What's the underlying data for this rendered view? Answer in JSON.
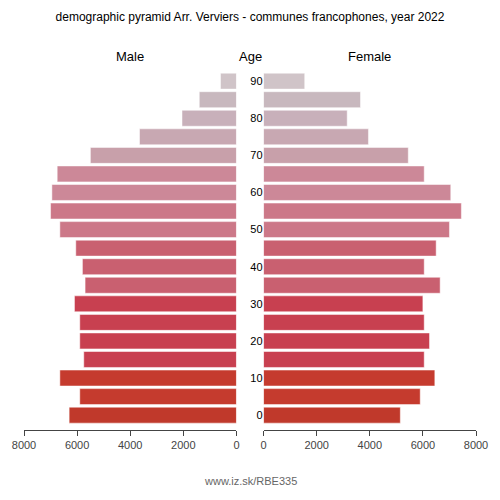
{
  "chart_data": {
    "type": "bar",
    "orientation": "horizontal",
    "title": "demographic pyramid Arr. Verviers - communes francophones, year 2022",
    "ylabel": "Age",
    "annotations": [
      "www.iz.sk/RBE335"
    ],
    "y": [
      0,
      5,
      10,
      15,
      20,
      25,
      30,
      35,
      40,
      45,
      50,
      55,
      60,
      65,
      70,
      75,
      80,
      85,
      90
    ],
    "series": [
      {
        "name": "Male",
        "colors": [
          "#c0392b",
          "#c53b2e",
          "#c53b2e",
          "#c84050",
          "#c84050",
          "#c84050",
          "#c84050",
          "#c96070",
          "#c96070",
          "#c96070",
          "#cc7888",
          "#cc7888",
          "#cc8898",
          "#cc8898",
          "#c8a0aa",
          "#c8a8b2",
          "#c8b0ba",
          "#c8b8be",
          "#d0c4c8"
        ],
        "values": [
          6300,
          5900,
          6650,
          5750,
          5900,
          5900,
          6100,
          5700,
          5800,
          6050,
          6650,
          7000,
          6950,
          6750,
          5500,
          3650,
          2050,
          1400,
          600
        ]
      },
      {
        "name": "Female",
        "colors": [
          "#c0392b",
          "#c53b2e",
          "#c53b2e",
          "#c84050",
          "#c84050",
          "#c84050",
          "#c84050",
          "#c96070",
          "#c96070",
          "#c96070",
          "#cc7888",
          "#cc7888",
          "#cc8898",
          "#cc8898",
          "#c8a0aa",
          "#c8a8b2",
          "#c8b0ba",
          "#c8b8be",
          "#d0c4c8"
        ],
        "values": [
          5150,
          5900,
          6450,
          6050,
          6250,
          6050,
          6000,
          6650,
          6050,
          6500,
          7000,
          7450,
          7050,
          6050,
          5450,
          3950,
          3150,
          3650,
          1550
        ]
      }
    ],
    "xlim": [
      0,
      8000
    ],
    "xticks": [
      0,
      2000,
      4000,
      6000,
      8000
    ],
    "ylim": [
      -4,
      93
    ],
    "yticks": [
      0,
      10,
      20,
      30,
      40,
      50,
      60,
      70,
      80,
      90
    ],
    "grid": false
  }
}
